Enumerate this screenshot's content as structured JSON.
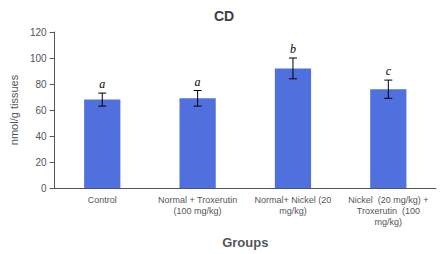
{
  "chart_data": {
    "type": "bar",
    "title": "CD",
    "xlabel": "Groups",
    "ylabel": "nmol/g tissues",
    "categories": [
      "Control",
      "Normal + Troxerutin\n(100 mg/kg)",
      "Normal+ Nickel (20\nmg/kg)",
      "Nickel  (20 mg/kg) +\nTroxerutin  (100\nmg/kg)"
    ],
    "values": [
      68,
      69,
      92,
      76
    ],
    "errors": [
      5,
      6,
      8,
      7
    ],
    "annotations": [
      "a",
      "a",
      "b",
      "c"
    ],
    "ylim": [
      0,
      120
    ],
    "yticks": [
      0,
      20,
      40,
      60,
      80,
      100,
      120
    ],
    "grid": false
  }
}
